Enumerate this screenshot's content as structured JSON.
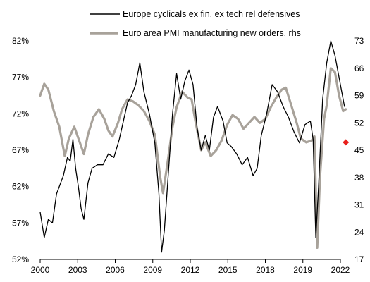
{
  "chart_data": {
    "type": "line",
    "title": "",
    "legend_position": "top",
    "grid": false,
    "x_axis": {
      "range": [
        2000,
        2022
      ],
      "ticks": [
        "2000",
        "2003",
        "2006",
        "2009",
        "2012",
        "2015",
        "2018",
        "2019",
        "2022"
      ]
    },
    "y_left": {
      "label": "",
      "range": [
        52,
        82
      ],
      "ticks": [
        "52%",
        "57%",
        "62%",
        "67%",
        "72%",
        "77%",
        "82%"
      ]
    },
    "y_right": {
      "label": "",
      "range": [
        17,
        73
      ],
      "ticks": [
        "17",
        "24",
        "31",
        "38",
        "45",
        "52",
        "59",
        "66",
        "73"
      ]
    },
    "series": [
      {
        "name": "Europe cyclicals ex fin, ex tech rel defensives",
        "axis": "left",
        "color": "#000000",
        "points": [
          [
            2000.0,
            58.5
          ],
          [
            2000.3,
            55.0
          ],
          [
            2000.6,
            57.5
          ],
          [
            2000.9,
            57.0
          ],
          [
            2001.2,
            61.0
          ],
          [
            2001.4,
            62.0
          ],
          [
            2001.7,
            63.5
          ],
          [
            2002.0,
            66.0
          ],
          [
            2002.2,
            65.5
          ],
          [
            2002.4,
            68.5
          ],
          [
            2002.6,
            64.5
          ],
          [
            2002.8,
            62.0
          ],
          [
            2003.0,
            59.0
          ],
          [
            2003.2,
            57.5
          ],
          [
            2003.5,
            62.5
          ],
          [
            2003.8,
            64.5
          ],
          [
            2004.2,
            65.0
          ],
          [
            2004.6,
            65.0
          ],
          [
            2005.0,
            66.5
          ],
          [
            2005.4,
            66.0
          ],
          [
            2005.8,
            68.5
          ],
          [
            2006.1,
            71.0
          ],
          [
            2006.4,
            73.5
          ],
          [
            2006.7,
            74.5
          ],
          [
            2007.0,
            76.0
          ],
          [
            2007.3,
            79.0
          ],
          [
            2007.6,
            75.0
          ],
          [
            2008.0,
            72.0
          ],
          [
            2008.4,
            68.0
          ],
          [
            2008.7,
            61.0
          ],
          [
            2008.9,
            53.0
          ],
          [
            2009.1,
            56.0
          ],
          [
            2009.4,
            64.0
          ],
          [
            2009.7,
            72.0
          ],
          [
            2010.0,
            77.5
          ],
          [
            2010.3,
            74.0
          ],
          [
            2010.6,
            76.5
          ],
          [
            2010.9,
            78.0
          ],
          [
            2011.2,
            76.0
          ],
          [
            2011.5,
            70.0
          ],
          [
            2011.8,
            67.0
          ],
          [
            2012.1,
            69.0
          ],
          [
            2012.4,
            67.0
          ],
          [
            2012.7,
            71.5
          ],
          [
            2013.0,
            73.0
          ],
          [
            2013.4,
            71.0
          ],
          [
            2013.7,
            68.0
          ],
          [
            2014.0,
            67.5
          ],
          [
            2014.4,
            66.5
          ],
          [
            2014.8,
            65.0
          ],
          [
            2015.2,
            66.0
          ],
          [
            2015.6,
            63.5
          ],
          [
            2015.9,
            64.5
          ],
          [
            2016.2,
            69.0
          ],
          [
            2016.6,
            72.0
          ],
          [
            2017.0,
            76.0
          ],
          [
            2017.4,
            75.0
          ],
          [
            2017.8,
            73.0
          ],
          [
            2018.2,
            71.5
          ],
          [
            2018.6,
            69.5
          ],
          [
            2019.0,
            68.0
          ],
          [
            2019.4,
            70.5
          ],
          [
            2019.8,
            71.0
          ],
          [
            2020.0,
            68.5
          ],
          [
            2020.2,
            55.0
          ],
          [
            2020.4,
            62.0
          ],
          [
            2020.7,
            74.0
          ],
          [
            2021.0,
            79.0
          ],
          [
            2021.3,
            82.0
          ],
          [
            2021.6,
            80.0
          ],
          [
            2021.9,
            77.0
          ],
          [
            2022.1,
            75.0
          ],
          [
            2022.3,
            73.0
          ]
        ]
      },
      {
        "name": "Euro area PMI manufacturing new orders, rhs",
        "axis": "right",
        "color": "#a8a29a",
        "points": [
          [
            2000.0,
            59.0
          ],
          [
            2000.3,
            62.0
          ],
          [
            2000.6,
            60.5
          ],
          [
            2001.0,
            55.0
          ],
          [
            2001.4,
            51.0
          ],
          [
            2001.8,
            43.5
          ],
          [
            2002.1,
            48.0
          ],
          [
            2002.5,
            51.0
          ],
          [
            2002.9,
            47.0
          ],
          [
            2003.2,
            44.0
          ],
          [
            2003.5,
            49.0
          ],
          [
            2003.9,
            53.5
          ],
          [
            2004.3,
            55.5
          ],
          [
            2004.7,
            53.0
          ],
          [
            2005.0,
            50.0
          ],
          [
            2005.3,
            48.5
          ],
          [
            2005.7,
            52.0
          ],
          [
            2006.0,
            55.5
          ],
          [
            2006.4,
            58.0
          ],
          [
            2006.8,
            57.5
          ],
          [
            2007.2,
            56.5
          ],
          [
            2007.6,
            55.0
          ],
          [
            2008.0,
            52.5
          ],
          [
            2008.4,
            49.0
          ],
          [
            2008.8,
            38.0
          ],
          [
            2009.0,
            34.0
          ],
          [
            2009.3,
            41.0
          ],
          [
            2009.7,
            51.0
          ],
          [
            2010.0,
            56.0
          ],
          [
            2010.4,
            60.0
          ],
          [
            2010.8,
            58.5
          ],
          [
            2011.1,
            58.0
          ],
          [
            2011.4,
            52.0
          ],
          [
            2011.8,
            45.0
          ],
          [
            2012.1,
            47.0
          ],
          [
            2012.5,
            43.5
          ],
          [
            2012.9,
            45.0
          ],
          [
            2013.3,
            47.5
          ],
          [
            2013.7,
            51.5
          ],
          [
            2014.1,
            54.0
          ],
          [
            2014.5,
            53.0
          ],
          [
            2014.9,
            50.5
          ],
          [
            2015.3,
            52.0
          ],
          [
            2015.7,
            53.5
          ],
          [
            2016.1,
            52.0
          ],
          [
            2016.5,
            53.0
          ],
          [
            2016.9,
            56.0
          ],
          [
            2017.3,
            58.5
          ],
          [
            2017.7,
            60.5
          ],
          [
            2018.0,
            61.0
          ],
          [
            2018.4,
            56.5
          ],
          [
            2018.8,
            52.0
          ],
          [
            2019.1,
            48.0
          ],
          [
            2019.5,
            47.0
          ],
          [
            2019.9,
            47.5
          ],
          [
            2020.1,
            48.5
          ],
          [
            2020.3,
            20.0
          ],
          [
            2020.5,
            38.0
          ],
          [
            2020.8,
            53.0
          ],
          [
            2021.0,
            56.5
          ],
          [
            2021.3,
            66.0
          ],
          [
            2021.6,
            65.0
          ],
          [
            2021.9,
            59.0
          ],
          [
            2022.2,
            55.0
          ],
          [
            2022.4,
            55.5
          ]
        ]
      }
    ],
    "annotations": [
      {
        "type": "marker",
        "shape": "diamond",
        "color": "#e8201c",
        "axis": "right",
        "x": 2022.4,
        "y": 47.0
      }
    ]
  }
}
